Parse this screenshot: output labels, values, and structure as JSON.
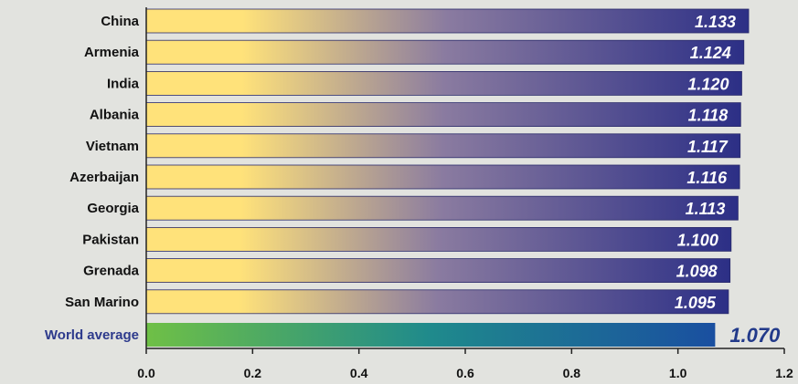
{
  "chart_data": {
    "type": "bar",
    "orientation": "horizontal",
    "categories": [
      "China",
      "Armenia",
      "India",
      "Albania",
      "Vietnam",
      "Azerbaijan",
      "Georgia",
      "Pakistan",
      "Grenada",
      "San Marino",
      "World average"
    ],
    "values": [
      1.133,
      1.124,
      1.12,
      1.118,
      1.117,
      1.116,
      1.113,
      1.1,
      1.098,
      1.095,
      1.07
    ],
    "value_labels": [
      "1.133",
      "1.124",
      "1.120",
      "1.118",
      "1.117",
      "1.116",
      "1.113",
      "1.100",
      "1.098",
      "1.095",
      "1.070"
    ],
    "highlight_category": "World average",
    "x_ticks": [
      "0.0",
      "0.2",
      "0.4",
      "0.6",
      "0.8",
      "1.0",
      "1.2"
    ],
    "x_tick_values": [
      0,
      0.2,
      0.4,
      0.6,
      0.8,
      1.0,
      1.2
    ],
    "xlim": [
      0,
      1.2
    ],
    "grid": false,
    "legend": "none",
    "colors": {
      "bar_start": "#ffe27a",
      "bar_end": "#2c2f86",
      "highlight_start": "#6fc046",
      "highlight_end": "#1a4fa0",
      "highlight_label": "#2d3a8c"
    }
  }
}
